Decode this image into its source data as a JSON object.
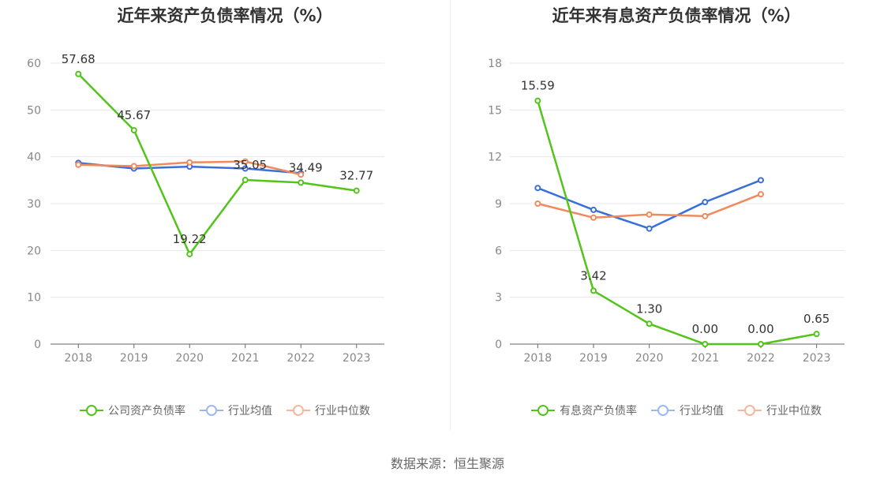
{
  "source_text": "数据来源：恒生聚源",
  "chart_data": [
    {
      "type": "line",
      "title": "近年来资产负债率情况（%）",
      "categories": [
        "2018",
        "2019",
        "2020",
        "2021",
        "2022",
        "2023"
      ],
      "ylim": [
        0,
        60
      ],
      "yticks": [
        0,
        10,
        20,
        30,
        40,
        50,
        60
      ],
      "grid": true,
      "legend_position": "bottom",
      "series": [
        {
          "name": "公司资产负债率",
          "color": "#52c41a",
          "values": [
            57.68,
            45.67,
            19.22,
            35.05,
            34.49,
            32.77
          ],
          "labels": [
            "57.68",
            "45.67",
            "19.22",
            "35.05",
            "34.49",
            "32.77"
          ]
        },
        {
          "name": "行业均值",
          "color": "#3a6fd8",
          "values": [
            38.7,
            37.5,
            37.9,
            37.5,
            36.5,
            null
          ]
        },
        {
          "name": "行业中位数",
          "color": "#f08a5d",
          "values": [
            38.3,
            38.0,
            38.8,
            39.0,
            36.2,
            null
          ]
        }
      ]
    },
    {
      "type": "line",
      "title": "近年来有息资产负债率情况（%）",
      "categories": [
        "2018",
        "2019",
        "2020",
        "2021",
        "2022",
        "2023"
      ],
      "ylim": [
        0,
        18
      ],
      "yticks": [
        0,
        3,
        6,
        9,
        12,
        15,
        18
      ],
      "grid": true,
      "legend_position": "bottom",
      "series": [
        {
          "name": "有息资产负债率",
          "color": "#52c41a",
          "values": [
            15.59,
            3.42,
            1.3,
            0.0,
            0.0,
            0.65
          ],
          "labels": [
            "15.59",
            "3.42",
            "1.30",
            "0.00",
            "0.00",
            "0.65"
          ]
        },
        {
          "name": "行业均值",
          "color": "#3a6fd8",
          "values": [
            10.0,
            8.6,
            7.4,
            9.1,
            10.5,
            null
          ]
        },
        {
          "name": "行业中位数",
          "color": "#f08a5d",
          "values": [
            9.0,
            8.1,
            8.3,
            8.2,
            9.6,
            null
          ]
        }
      ]
    }
  ]
}
